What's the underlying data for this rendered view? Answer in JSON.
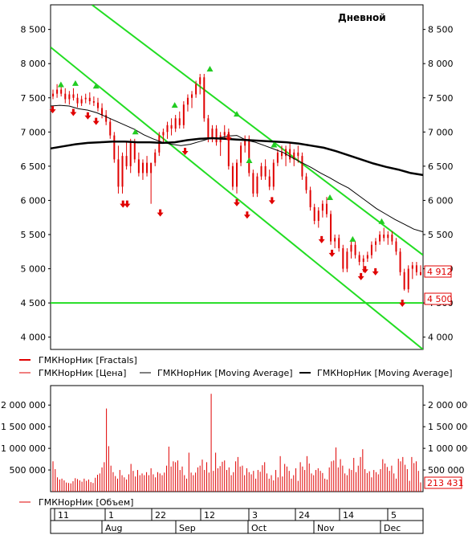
{
  "chart_data": {
    "type": "line",
    "title": "Дневной",
    "price_panel": {
      "yticks": [
        "8 500",
        "8 000",
        "7 500",
        "7 000",
        "6 500",
        "6 000",
        "5 500",
        "5 000",
        "4 500",
        "4 000"
      ],
      "ytick_values": [
        8500,
        8000,
        7500,
        7000,
        6500,
        6000,
        5500,
        5000,
        4500,
        4000
      ],
      "ylim": [
        3820,
        8860
      ],
      "last_price": 4912,
      "last_price_label": "4 912",
      "level_value": 4500,
      "level_label": "4 500",
      "price_series": [
        [
          7520,
          7620,
          7480,
          7560
        ],
        [
          7560,
          7700,
          7500,
          7620
        ],
        [
          7620,
          7680,
          7520,
          7560
        ],
        [
          7560,
          7640,
          7420,
          7480
        ],
        [
          7480,
          7600,
          7400,
          7550
        ],
        [
          7550,
          7640,
          7460,
          7500
        ],
        [
          7500,
          7560,
          7360,
          7420
        ],
        [
          7420,
          7530,
          7380,
          7480
        ],
        [
          7480,
          7560,
          7420,
          7500
        ],
        [
          7500,
          7580,
          7400,
          7450
        ],
        [
          7450,
          7520,
          7380,
          7430
        ],
        [
          7430,
          7500,
          7300,
          7350
        ],
        [
          7350,
          7420,
          7200,
          7250
        ],
        [
          7250,
          7320,
          7100,
          7150
        ],
        [
          7150,
          7200,
          6900,
          6950
        ],
        [
          6950,
          7000,
          6550,
          6600
        ],
        [
          6600,
          6800,
          6100,
          6200
        ],
        [
          6200,
          6700,
          6100,
          6650
        ],
        [
          6650,
          6850,
          6450,
          6500
        ],
        [
          6500,
          6900,
          6400,
          6850
        ],
        [
          6850,
          6900,
          6550,
          6600
        ],
        [
          6600,
          6700,
          6350,
          6400
        ],
        [
          6400,
          6600,
          6300,
          6550
        ],
        [
          6550,
          6650,
          6350,
          6400
        ],
        [
          6400,
          6500,
          5950,
          6550
        ],
        [
          6550,
          6750,
          6500,
          6700
        ],
        [
          6700,
          7000,
          6650,
          6950
        ],
        [
          6950,
          7050,
          6850,
          7000
        ],
        [
          7000,
          7150,
          6900,
          7100
        ],
        [
          7100,
          7200,
          6950,
          7050
        ],
        [
          7050,
          7250,
          7000,
          7200
        ],
        [
          7200,
          7300,
          7050,
          7100
        ],
        [
          7100,
          7450,
          7050,
          7400
        ],
        [
          7400,
          7550,
          7300,
          7500
        ],
        [
          7500,
          7600,
          7350,
          7550
        ],
        [
          7550,
          7750,
          7500,
          7700
        ],
        [
          7700,
          7850,
          7550,
          7800
        ],
        [
          7800,
          7850,
          7150,
          7200
        ],
        [
          7200,
          7250,
          6850,
          6900
        ],
        [
          6900,
          7100,
          6850,
          7050
        ],
        [
          7050,
          7100,
          6800,
          6850
        ],
        [
          6850,
          7000,
          6650,
          6950
        ],
        [
          6950,
          7100,
          6900,
          7000
        ],
        [
          7000,
          7050,
          6450,
          6500
        ],
        [
          6500,
          6550,
          6150,
          6200
        ],
        [
          6200,
          6600,
          6100,
          6550
        ],
        [
          6550,
          6850,
          6500,
          6800
        ],
        [
          6800,
          6950,
          6700,
          6900
        ],
        [
          6900,
          6950,
          6350,
          6400
        ],
        [
          6400,
          6450,
          6050,
          6100
        ],
        [
          6100,
          6400,
          6050,
          6350
        ],
        [
          6350,
          6550,
          6300,
          6500
        ],
        [
          6500,
          6600,
          6300,
          6350
        ],
        [
          6350,
          6450,
          6150,
          6200
        ],
        [
          6200,
          6600,
          6150,
          6550
        ],
        [
          6550,
          6750,
          6500,
          6700
        ],
        [
          6700,
          6800,
          6600,
          6650
        ],
        [
          6650,
          6800,
          6500,
          6750
        ],
        [
          6750,
          6850,
          6550,
          6600
        ],
        [
          6600,
          6750,
          6500,
          6700
        ],
        [
          6700,
          6800,
          6550,
          6650
        ],
        [
          6650,
          6700,
          6300,
          6350
        ],
        [
          6350,
          6400,
          6100,
          6150
        ],
        [
          6150,
          6200,
          5850,
          5900
        ],
        [
          5900,
          5950,
          5650,
          5700
        ],
        [
          5700,
          5900,
          5600,
          5850
        ],
        [
          5850,
          6000,
          5750,
          5950
        ],
        [
          5950,
          6050,
          5750,
          5800
        ],
        [
          5800,
          5850,
          5350,
          5400
        ],
        [
          5400,
          5500,
          5300,
          5450
        ],
        [
          5450,
          5500,
          5250,
          5300
        ],
        [
          5300,
          5350,
          4950,
          5000
        ],
        [
          5000,
          5300,
          4950,
          5250
        ],
        [
          5250,
          5400,
          5150,
          5350
        ],
        [
          5350,
          5400,
          5150,
          5200
        ],
        [
          5200,
          5250,
          5050,
          5100
        ],
        [
          5100,
          5200,
          4950,
          5150
        ],
        [
          5150,
          5250,
          5100,
          5200
        ],
        [
          5200,
          5400,
          5150,
          5350
        ],
        [
          5350,
          5450,
          5250,
          5400
        ],
        [
          5400,
          5550,
          5350,
          5500
        ],
        [
          5500,
          5600,
          5400,
          5450
        ],
        [
          5450,
          5550,
          5350,
          5500
        ],
        [
          5500,
          5550,
          5350,
          5400
        ],
        [
          5400,
          5450,
          5200,
          5250
        ],
        [
          5250,
          5300,
          4900,
          4950
        ],
        [
          4950,
          5000,
          4680,
          4700
        ],
        [
          4700,
          5050,
          4650,
          5000
        ],
        [
          5000,
          5100,
          4850,
          5050
        ],
        [
          5050,
          5100,
          4900,
          4950
        ],
        [
          4950,
          5050,
          4900,
          4912
        ]
      ],
      "ma_short": [
        7380,
        7390,
        7380,
        7340,
        7320,
        7280,
        7220,
        7160,
        7100,
        7040,
        6960,
        6900,
        6850,
        6820,
        6800,
        6820,
        6860,
        6900,
        6910,
        6940,
        6950,
        6880,
        6850,
        6800,
        6750,
        6700,
        6620,
        6550,
        6480,
        6400,
        6330,
        6250,
        6180,
        6080,
        5980,
        5880,
        5800,
        5720,
        5650,
        5580,
        5540
      ],
      "ma_long": [
        6760,
        6790,
        6820,
        6840,
        6850,
        6860,
        6860,
        6850,
        6850,
        6840,
        6850,
        6880,
        6900,
        6910,
        6900,
        6890,
        6880,
        6870,
        6860,
        6850,
        6830,
        6800,
        6770,
        6720,
        6660,
        6600,
        6540,
        6490,
        6450,
        6400,
        6370
      ],
      "fractals_up": [
        [
          5,
          7620
        ],
        [
          12,
          7640
        ],
        [
          22,
          7600
        ],
        [
          41,
          6930
        ],
        [
          60,
          7320
        ],
        [
          77,
          7850
        ],
        [
          90,
          7190
        ],
        [
          96,
          6510
        ],
        [
          108,
          6740
        ],
        [
          135,
          5970
        ],
        [
          146,
          5360
        ],
        [
          160,
          5620
        ]
      ],
      "fractals_down": [
        [
          1,
          7390
        ],
        [
          11,
          7350
        ],
        [
          18,
          7300
        ],
        [
          22,
          7220
        ],
        [
          35,
          6010
        ],
        [
          37,
          6010
        ],
        [
          53,
          5880
        ],
        [
          65,
          6780
        ],
        [
          86,
          6980
        ],
        [
          90,
          6030
        ],
        [
          95,
          5850
        ],
        [
          107,
          6060
        ],
        [
          131,
          5490
        ],
        [
          136,
          5290
        ],
        [
          150,
          4950
        ],
        [
          157,
          5020
        ],
        [
          152,
          5050
        ],
        [
          170,
          4560
        ]
      ],
      "channel_lines": [
        {
          "from": [
            0,
            8240
          ],
          "to": [
            180,
            3820
          ]
        },
        {
          "from": [
            20,
            8860
          ],
          "to": [
            180,
            5200
          ]
        }
      ]
    },
    "legend": [
      {
        "label": "ГМКНорНик [Fractals]",
        "color": "#e00000"
      },
      {
        "label": "ГМКНорНик [Цена]",
        "color": "#e00000"
      },
      {
        "label": "ГМКНорНик [Moving Average]",
        "color": "#000000"
      },
      {
        "label": "ГМКНорНик [Moving Average]",
        "color": "#000000"
      }
    ],
    "volume_panel": {
      "yticks": [
        "2 000 000",
        "1 500 000",
        "1 000 000",
        "500 000"
      ],
      "ytick_values": [
        2000000,
        1500000,
        1000000,
        500000
      ],
      "ylim": [
        0,
        2450000
      ],
      "last_volume_label": "213 431",
      "volumes": [
        700000,
        520000,
        330000,
        280000,
        300000,
        260000,
        210000,
        200000,
        190000,
        240000,
        310000,
        290000,
        260000,
        230000,
        300000,
        250000,
        280000,
        220000,
        200000,
        320000,
        390000,
        420000,
        560000,
        680000,
        1920000,
        1050000,
        600000,
        450000,
        360000,
        300000,
        500000,
        380000,
        330000,
        280000,
        400000,
        640000,
        480000,
        350000,
        500000,
        380000,
        420000,
        380000,
        450000,
        380000,
        540000,
        400000,
        330000,
        450000,
        420000,
        380000,
        440000,
        600000,
        1040000,
        580000,
        700000,
        680000,
        720000,
        500000,
        580000,
        380000,
        300000,
        900000,
        440000,
        380000,
        440000,
        560000,
        600000,
        740000,
        500000,
        680000,
        440000,
        2260000,
        480000,
        900000,
        540000,
        590000,
        690000,
        720000,
        500000,
        560000,
        380000,
        450000,
        700000,
        800000,
        580000,
        600000,
        380000,
        540000,
        450000,
        400000,
        480000,
        300000,
        500000,
        460000,
        610000,
        680000,
        420000,
        300000,
        380000,
        260000,
        500000,
        330000,
        820000,
        350000,
        640000,
        580000,
        480000,
        300000,
        380000,
        540000,
        250000,
        680000,
        580000,
        500000,
        820000,
        650000,
        420000,
        380000,
        500000,
        540000,
        480000,
        430000,
        300000,
        280000,
        560000,
        700000,
        720000,
        1020000,
        560000,
        750000,
        600000,
        420000,
        380000,
        530000,
        500000,
        780000,
        450000,
        600000,
        800000,
        980000,
        520000,
        430000,
        470000,
        330000,
        500000,
        450000,
        400000,
        520000,
        750000,
        650000,
        570000,
        480000,
        600000,
        420000,
        300000,
        760000,
        700000,
        800000,
        620000,
        520000,
        250000,
        800000,
        660000,
        700000,
        480000,
        213431
      ],
      "series_label": "ГМКНорНик [Объем]",
      "series_color": "#e00000"
    },
    "x_axis": {
      "day_ticks": [
        "11",
        "1",
        "22",
        "12",
        "3",
        "24",
        "14",
        "5"
      ],
      "month_ticks": [
        "Aug",
        "Sep",
        "Oct",
        "Nov",
        "Dec"
      ]
    }
  }
}
